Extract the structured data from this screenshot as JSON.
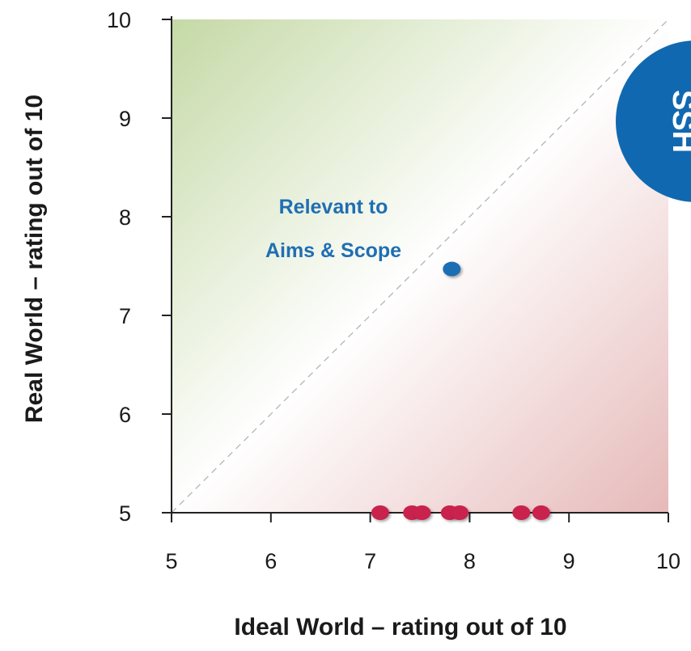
{
  "chart_data": {
    "type": "scatter",
    "title": "",
    "xlabel": "Ideal World – rating out of 10",
    "ylabel": "Real World – rating out of 10",
    "xlim": [
      5,
      10
    ],
    "ylim": [
      5,
      10
    ],
    "x_ticks": [
      "5",
      "6",
      "7",
      "8",
      "9",
      "10"
    ],
    "y_ticks": [
      "5",
      "6",
      "7",
      "8",
      "9",
      "10"
    ],
    "grid": false,
    "diagonal_reference_line": true,
    "series": [
      {
        "color": "#1f6eb3",
        "points": [
          {
            "x": 7.82,
            "y": 7.47
          }
        ]
      },
      {
        "color": "#c8224e",
        "points": [
          {
            "x": 7.1,
            "y": 5.0
          },
          {
            "x": 7.42,
            "y": 5.0
          },
          {
            "x": 7.52,
            "y": 5.0
          },
          {
            "x": 7.8,
            "y": 5.0
          },
          {
            "x": 7.9,
            "y": 5.0
          },
          {
            "x": 8.52,
            "y": 5.0
          },
          {
            "x": 8.72,
            "y": 5.0
          }
        ]
      }
    ],
    "annotations": [
      {
        "line1": "Relevant to",
        "line2": "Aims & Scope",
        "color": "#1f6eb3"
      }
    ],
    "badge": {
      "text": "SSH",
      "color": "#1069b0"
    },
    "colors": {
      "upper_region": "#c5d9a6",
      "lower_region": "#e6b9b9"
    }
  }
}
